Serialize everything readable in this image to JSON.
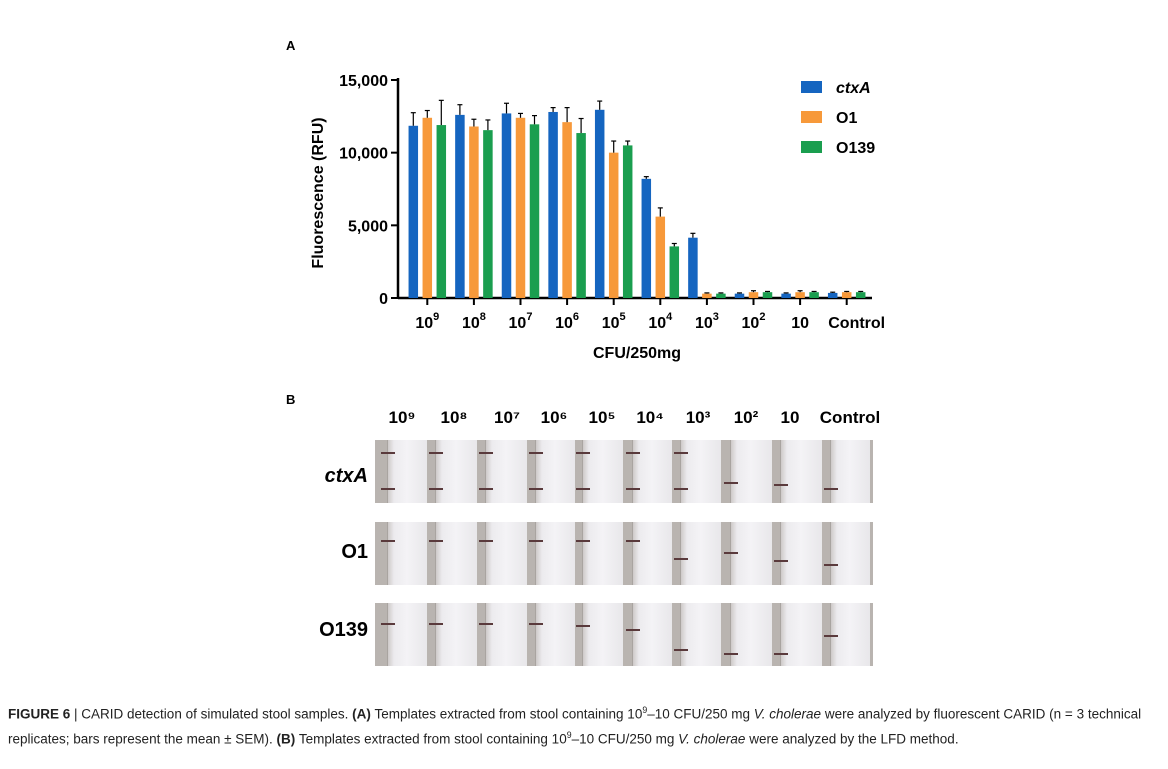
{
  "panel_a_label": "A",
  "panel_b_label": "B",
  "chart_data": {
    "type": "bar",
    "xlabel": "CFU/250mg",
    "ylabel": "Fluorescence (RFU)",
    "ylim": [
      0,
      15000
    ],
    "yticks": [
      "0",
      "5,000",
      "10,000",
      "15,000"
    ],
    "categories": [
      "10^9",
      "10^8",
      "10^7",
      "10^6",
      "10^5",
      "10^4",
      "10^3",
      "10^2",
      "10",
      "Control"
    ],
    "legend_position": "top-right",
    "series": [
      {
        "name": "ctxA",
        "color": "#1565c0",
        "values": [
          11850,
          12600,
          12700,
          12800,
          12950,
          8200,
          4150,
          300,
          300,
          350
        ],
        "errors": [
          900,
          700,
          700,
          300,
          600,
          150,
          300,
          50,
          50,
          50
        ]
      },
      {
        "name": "O1",
        "color": "#f7993a",
        "values": [
          12400,
          11800,
          12400,
          12100,
          10000,
          5600,
          300,
          400,
          400,
          400
        ],
        "errors": [
          500,
          500,
          300,
          1000,
          800,
          600,
          50,
          100,
          100,
          50
        ]
      },
      {
        "name": "O139",
        "color": "#1a9e4f",
        "values": [
          11900,
          11550,
          11950,
          11350,
          10500,
          3550,
          300,
          400,
          400,
          400
        ],
        "errors": [
          1700,
          700,
          600,
          1000,
          300,
          200,
          50,
          50,
          50,
          50
        ]
      }
    ]
  },
  "lfd": {
    "columns": [
      "10⁹",
      "10⁸",
      "10⁷",
      "10⁶",
      "10⁵",
      "10⁴",
      "10³",
      "10²",
      "10",
      "Control"
    ],
    "rows": [
      "ctxA",
      "O1",
      "O139"
    ]
  },
  "caption": {
    "figure": "FIGURE 6",
    "sep": " | ",
    "title": "CARID detection of simulated stool samples.",
    "a_marker": "(A)",
    "a_text_1": "Templates extracted from stool containing 10",
    "a_sup": "9",
    "a_text_2": "–10 CFU/250 mg ",
    "species": "V. cholerae",
    "a_text_3": " were analyzed by fluorescent CARID (n = 3 technical replicates; bars represent the mean ± SEM).",
    "b_marker": "(B)",
    "b_text_1": "Templates extracted from stool containing 10",
    "b_sup": "9",
    "b_text_2": "–10 CFU/250 mg ",
    "b_text_3": " were analyzed by the LFD method."
  }
}
